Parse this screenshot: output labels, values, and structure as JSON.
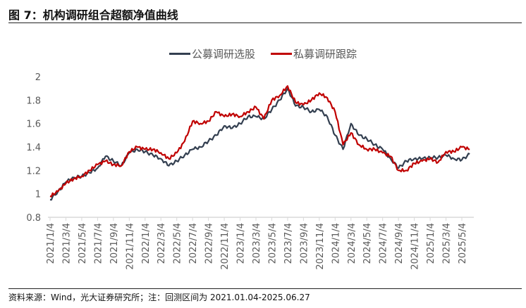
{
  "header": {
    "title": "图 7：机构调研组合超额净值曲线"
  },
  "footer": {
    "source": "资料来源：Wind，光大证券研究所；注：回测区间为 2021.01.04-2025.06.27"
  },
  "chart_data": {
    "type": "line",
    "title": "",
    "xlabel": "",
    "ylabel": "",
    "ylim": [
      0.8,
      2
    ],
    "yticks": [
      "0.8",
      "1",
      "1.2",
      "1.4",
      "1.6",
      "1.8",
      "2"
    ],
    "grid": false,
    "legend_placement": "top",
    "xtick_labels": [
      "2021/1/4",
      "2021/3/4",
      "2021/5/4",
      "2021/7/4",
      "2021/9/4",
      "2021/11/4",
      "2022/1/4",
      "2022/3/4",
      "2022/5/4",
      "2022/7/4",
      "2022/9/4",
      "2022/11/4",
      "2023/1/4",
      "2023/3/4",
      "2023/5/4",
      "2023/7/4",
      "2023/9/4",
      "2023/11/4",
      "2024/1/4",
      "2024/3/4",
      "2024/5/4",
      "2024/7/4",
      "2024/9/4",
      "2024/11/4",
      "2025/1/4",
      "2025/3/4",
      "2025/5/4"
    ],
    "x": [
      "2021-01",
      "2021-02",
      "2021-03",
      "2021-04",
      "2021-05",
      "2021-06",
      "2021-07",
      "2021-08",
      "2021-09",
      "2021-10",
      "2021-11",
      "2021-12",
      "2022-01",
      "2022-02",
      "2022-03",
      "2022-04",
      "2022-05",
      "2022-06",
      "2022-07",
      "2022-08",
      "2022-09",
      "2022-10",
      "2022-11",
      "2022-12",
      "2023-01",
      "2023-02",
      "2023-03",
      "2023-04",
      "2023-05",
      "2023-06",
      "2023-07",
      "2023-08",
      "2023-09",
      "2023-10",
      "2023-11",
      "2023-12",
      "2024-01",
      "2024-02",
      "2024-03",
      "2024-04",
      "2024-05",
      "2024-06",
      "2024-07",
      "2024-08",
      "2024-09",
      "2024-10",
      "2024-11",
      "2024-12",
      "2025-01",
      "2025-02",
      "2025-03",
      "2025-04",
      "2025-05",
      "2025-06"
    ],
    "series": [
      {
        "name": "公募调研选股",
        "color": "#333f50",
        "values": [
          0.95,
          1.02,
          1.1,
          1.14,
          1.15,
          1.18,
          1.22,
          1.32,
          1.28,
          1.24,
          1.35,
          1.38,
          1.36,
          1.33,
          1.3,
          1.24,
          1.28,
          1.33,
          1.38,
          1.4,
          1.45,
          1.5,
          1.58,
          1.56,
          1.6,
          1.66,
          1.66,
          1.64,
          1.72,
          1.8,
          1.9,
          1.75,
          1.74,
          1.7,
          1.72,
          1.66,
          1.5,
          1.38,
          1.6,
          1.5,
          1.47,
          1.42,
          1.38,
          1.3,
          1.22,
          1.28,
          1.3,
          1.3,
          1.31,
          1.31,
          1.33,
          1.3,
          1.29,
          1.34
        ]
      },
      {
        "name": "私募调研跟踪",
        "color": "#c00000",
        "values": [
          0.98,
          1.02,
          1.09,
          1.13,
          1.15,
          1.2,
          1.25,
          1.28,
          1.25,
          1.24,
          1.36,
          1.4,
          1.38,
          1.38,
          1.35,
          1.3,
          1.35,
          1.45,
          1.62,
          1.6,
          1.62,
          1.7,
          1.66,
          1.68,
          1.66,
          1.7,
          1.74,
          1.64,
          1.8,
          1.84,
          1.92,
          1.78,
          1.76,
          1.8,
          1.86,
          1.82,
          1.7,
          1.42,
          1.52,
          1.42,
          1.38,
          1.38,
          1.35,
          1.32,
          1.2,
          1.2,
          1.26,
          1.28,
          1.3,
          1.27,
          1.36,
          1.36,
          1.4,
          1.38
        ]
      }
    ]
  }
}
